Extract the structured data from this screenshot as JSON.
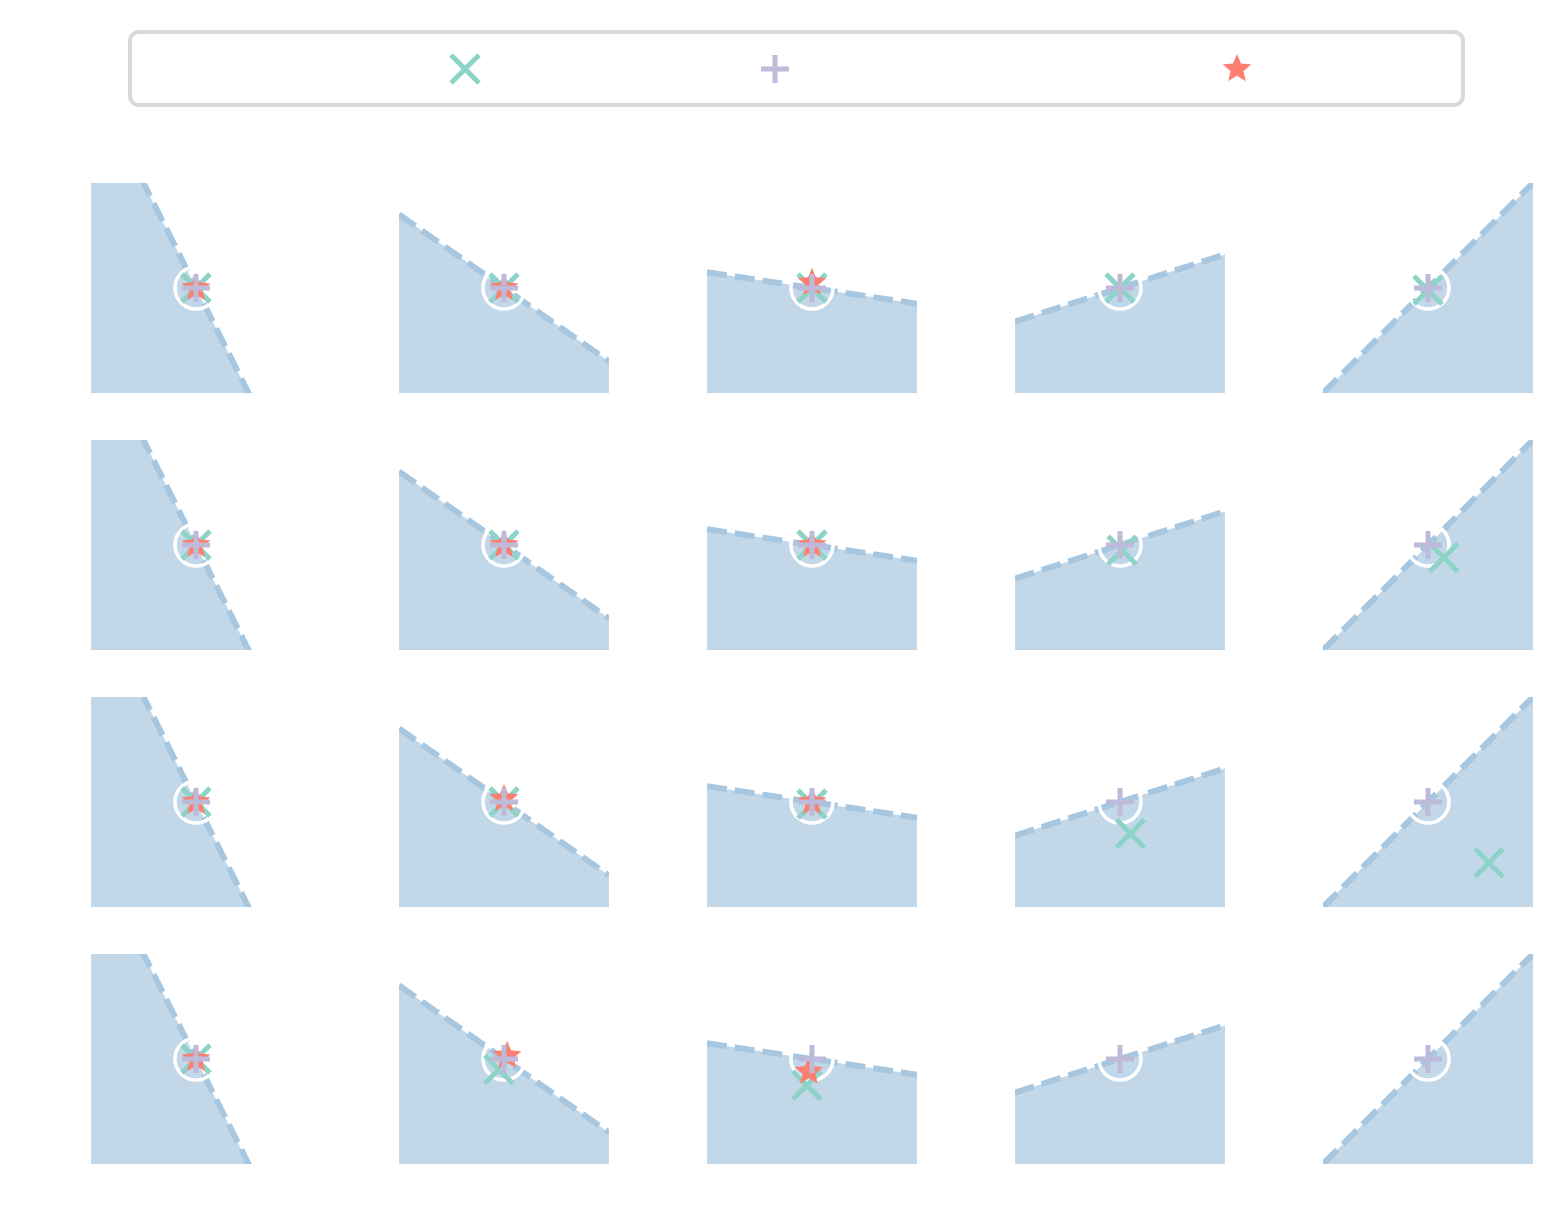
{
  "colors": {
    "fill": "#c2d8e9",
    "boundary": "#a7c7e1",
    "ring": "#ffffff",
    "x_marker": "#8dd3c7",
    "plus_marker": "#bebada",
    "star_marker": "#fb8072",
    "legend_border": "#d9d9d9"
  },
  "legend": {
    "entries": [
      {
        "marker": "x-marker-icon",
        "color": "#8dd3c7"
      },
      {
        "marker": "plus-marker-icon",
        "color": "#bebada"
      },
      {
        "marker": "star-marker-icon",
        "color": "#fb8072"
      }
    ]
  },
  "chart_data": {
    "type": "scatter",
    "layout": "grid",
    "rows": 4,
    "cols": 5,
    "axes_visible": false,
    "grid": false,
    "xlim": [
      -1,
      1
    ],
    "ylim": [
      -1,
      1
    ],
    "center": [
      0,
      0
    ],
    "column_slopes": [
      -2.0,
      -0.7,
      -0.15,
      0.32,
      1.0
    ],
    "panels": [
      {
        "row": 0,
        "col": 0,
        "points": {
          "x": [
            0,
            0
          ],
          "plus": [
            0,
            0
          ],
          "star": [
            0,
            0
          ]
        }
      },
      {
        "row": 0,
        "col": 1,
        "points": {
          "x": [
            0,
            0
          ],
          "plus": [
            0,
            0
          ],
          "star": [
            0,
            0
          ]
        }
      },
      {
        "row": 0,
        "col": 2,
        "points": {
          "x": [
            0,
            0
          ],
          "plus": [
            0,
            0
          ],
          "star": [
            0,
            0.05
          ]
        }
      },
      {
        "row": 0,
        "col": 3,
        "points": {
          "x": [
            0,
            0
          ],
          "plus": [
            0,
            0
          ],
          "star": null
        }
      },
      {
        "row": 0,
        "col": 4,
        "points": {
          "x": [
            0,
            -0.02
          ],
          "plus": [
            0,
            0
          ],
          "star": null
        }
      },
      {
        "row": 1,
        "col": 0,
        "points": {
          "x": [
            0,
            0
          ],
          "plus": [
            0,
            0
          ],
          "star": [
            0,
            0
          ]
        }
      },
      {
        "row": 1,
        "col": 1,
        "points": {
          "x": [
            0,
            0
          ],
          "plus": [
            0,
            0
          ],
          "star": [
            0,
            0
          ]
        }
      },
      {
        "row": 1,
        "col": 2,
        "points": {
          "x": [
            0,
            0
          ],
          "plus": [
            0,
            0
          ],
          "star": [
            0,
            0
          ]
        }
      },
      {
        "row": 1,
        "col": 3,
        "points": {
          "x": [
            0.02,
            -0.05
          ],
          "plus": [
            0,
            0
          ],
          "star": null
        }
      },
      {
        "row": 1,
        "col": 4,
        "points": {
          "x": [
            0.15,
            -0.12
          ],
          "plus": [
            0,
            0
          ],
          "star": null
        }
      },
      {
        "row": 2,
        "col": 0,
        "points": {
          "x": [
            0,
            0
          ],
          "plus": [
            0,
            0
          ],
          "star": [
            0,
            0
          ]
        }
      },
      {
        "row": 2,
        "col": 1,
        "points": {
          "x": [
            0,
            0
          ],
          "plus": [
            0,
            0
          ],
          "star": [
            0,
            0.03
          ]
        }
      },
      {
        "row": 2,
        "col": 2,
        "points": {
          "x": [
            0,
            -0.02
          ],
          "plus": [
            0,
            0
          ],
          "star": [
            0,
            0
          ]
        }
      },
      {
        "row": 2,
        "col": 3,
        "points": {
          "x": [
            0.1,
            -0.3
          ],
          "plus": [
            0,
            0
          ],
          "star": null
        }
      },
      {
        "row": 2,
        "col": 4,
        "points": {
          "x": [
            0.58,
            -0.58
          ],
          "plus": [
            0,
            0
          ],
          "star": null
        }
      },
      {
        "row": 3,
        "col": 0,
        "points": {
          "x": [
            0,
            0
          ],
          "plus": [
            0,
            0
          ],
          "star": [
            0,
            0
          ]
        }
      },
      {
        "row": 3,
        "col": 1,
        "points": {
          "x": [
            -0.05,
            -0.1
          ],
          "plus": [
            0,
            0
          ],
          "star": [
            0.03,
            0.03
          ]
        }
      },
      {
        "row": 3,
        "col": 2,
        "points": {
          "x": [
            -0.05,
            -0.25
          ],
          "plus": [
            0,
            0
          ],
          "star": [
            -0.03,
            -0.12
          ]
        }
      },
      {
        "row": 3,
        "col": 3,
        "points": {
          "x": null,
          "plus": [
            0,
            0
          ],
          "star": null
        }
      },
      {
        "row": 3,
        "col": 4,
        "points": {
          "x": null,
          "plus": [
            0,
            0
          ],
          "star": null
        }
      }
    ]
  }
}
